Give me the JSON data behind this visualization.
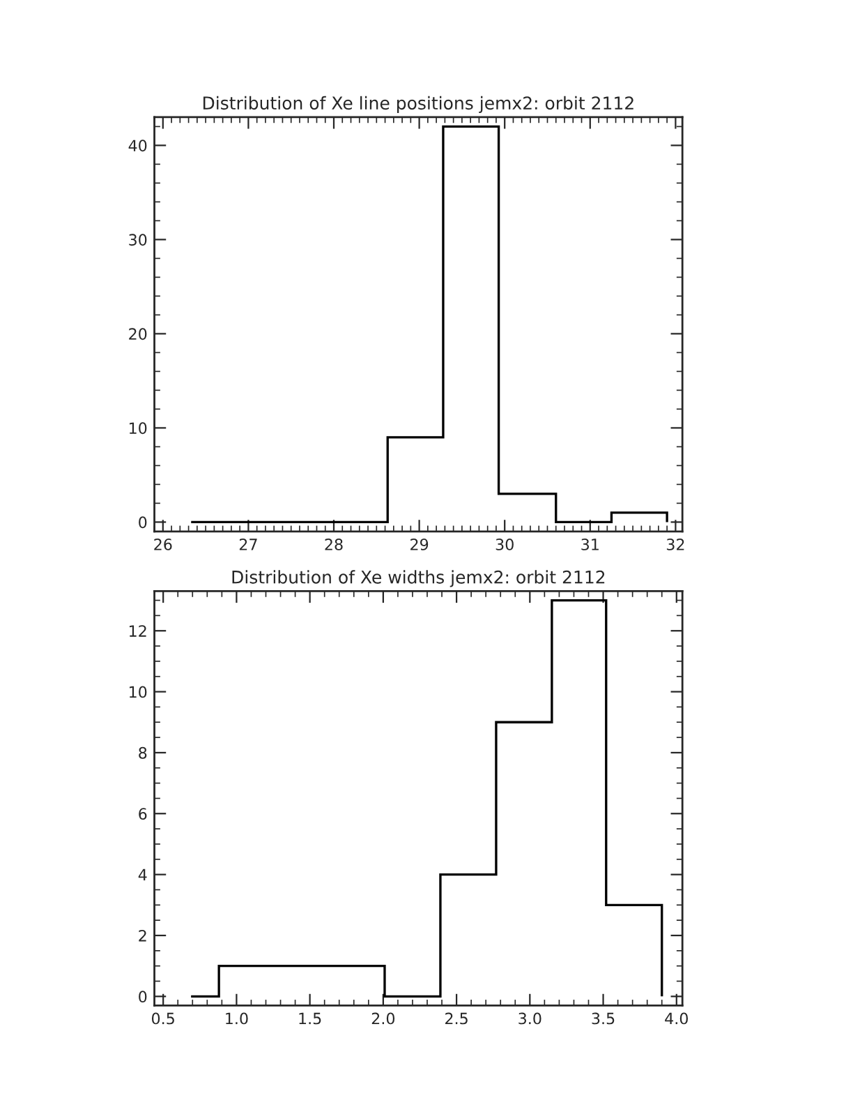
{
  "chart_data": [
    {
      "type": "histogram",
      "title": "Distribution of Xe line positions jemx2: orbit 2112",
      "color": "#000000",
      "bins": [
        26.33,
        28.63,
        29.28,
        29.93,
        30.6,
        31.25,
        31.9
      ],
      "values": [
        0,
        9,
        42,
        3,
        0,
        1
      ],
      "xlim": [
        25.9,
        32.08
      ],
      "ylim": [
        -1,
        43
      ],
      "xticks": [
        26,
        27,
        28,
        29,
        30,
        31,
        32
      ],
      "yticks": [
        0,
        10,
        20,
        30,
        40
      ],
      "grid": false
    },
    {
      "type": "histogram",
      "title": "Distribution of Xe widths jemx2: orbit 2112",
      "color": "#000000",
      "bins": [
        0.69,
        0.88,
        2.01,
        2.39,
        2.77,
        3.15,
        3.52,
        3.9
      ],
      "values": [
        0,
        1,
        0,
        4,
        9,
        13,
        3
      ],
      "xlim": [
        0.44,
        4.04
      ],
      "ylim": [
        -0.3,
        13.3
      ],
      "xticks": [
        {
          "value": 0.5,
          "label": "0.5"
        },
        {
          "value": 1.0,
          "label": "1.0"
        },
        {
          "value": 1.5,
          "label": "1.5"
        },
        {
          "value": 2.0,
          "label": "2.0"
        },
        {
          "value": 2.5,
          "label": "2.5"
        },
        {
          "value": 3.0,
          "label": "3.0"
        },
        {
          "value": 3.5,
          "label": "3.5"
        },
        {
          "value": 4.0,
          "label": "4.0"
        }
      ],
      "yticks": [
        0,
        2,
        4,
        6,
        8,
        10,
        12
      ],
      "grid": false
    }
  ]
}
